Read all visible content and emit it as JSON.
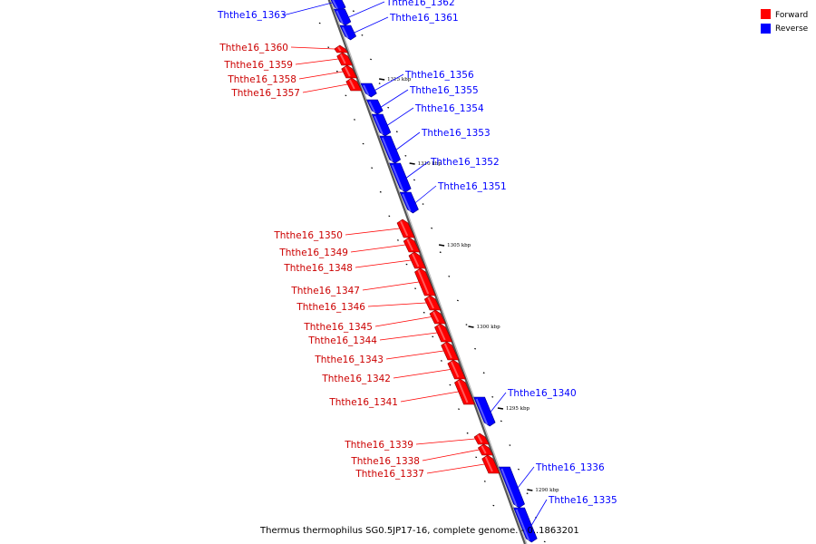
{
  "legend": {
    "forward_label": "Forward",
    "reverse_label": "Reverse",
    "forward_color": "#ff0000",
    "reverse_color": "#0000ff"
  },
  "caption": "Thermus thermophilus SG0.5JP17-16, complete genome. - 0..1863201",
  "ticks": [
    "1315 kbp",
    "1310 kbp",
    "1305 kbp",
    "1300 kbp",
    "1295 kbp",
    "1290 kbp"
  ],
  "genes": {
    "reverse": [
      "Ththe16_1363",
      "Ththe16_1362",
      "Ththe16_1361",
      "Ththe16_1356",
      "Ththe16_1355",
      "Ththe16_1354",
      "Ththe16_1353",
      "Ththe16_1352",
      "Ththe16_1351",
      "Ththe16_1340",
      "Ththe16_1336",
      "Ththe16_1335"
    ],
    "forward": [
      "Ththe16_1360",
      "Ththe16_1359",
      "Ththe16_1358",
      "Ththe16_1357",
      "Ththe16_1350",
      "Ththe16_1349",
      "Ththe16_1348",
      "Ththe16_1347",
      "Ththe16_1346",
      "Ththe16_1345",
      "Ththe16_1344",
      "Ththe16_1343",
      "Ththe16_1342",
      "Ththe16_1341",
      "Ththe16_1339",
      "Ththe16_1338",
      "Ththe16_1337"
    ]
  }
}
